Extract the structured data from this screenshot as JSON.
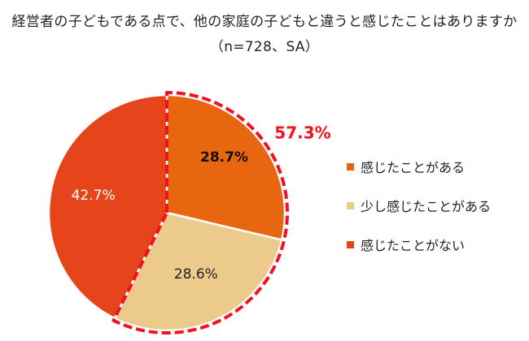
{
  "titles": {
    "line1": "経営者の子どもである点で、他の家庭の子どもと違うと感じたことはありますか",
    "line2": "（n=728、SA）"
  },
  "chart_data": {
    "type": "pie",
    "title": "経営者の子どもである点で、他の家庭の子どもと違うと感じたことはありますか",
    "subtitle": "（n=728、SA）",
    "unit": "%",
    "slices": [
      {
        "label": "感じたことがある",
        "value": 28.7,
        "display": "28.7%",
        "color": "#E8660F"
      },
      {
        "label": "少し感じたことがある",
        "value": 28.6,
        "display": "28.6%",
        "color": "#ECCA8C"
      },
      {
        "label": "感じたことがない",
        "value": 42.7,
        "display": "42.7%",
        "color": "#E6441B"
      }
    ],
    "highlight": {
      "value": 57.3,
      "display": "57.3%",
      "color": "#F5101F",
      "covers": [
        "感じたことがある",
        "少し感じたことがある"
      ]
    },
    "legend_position": "right"
  }
}
